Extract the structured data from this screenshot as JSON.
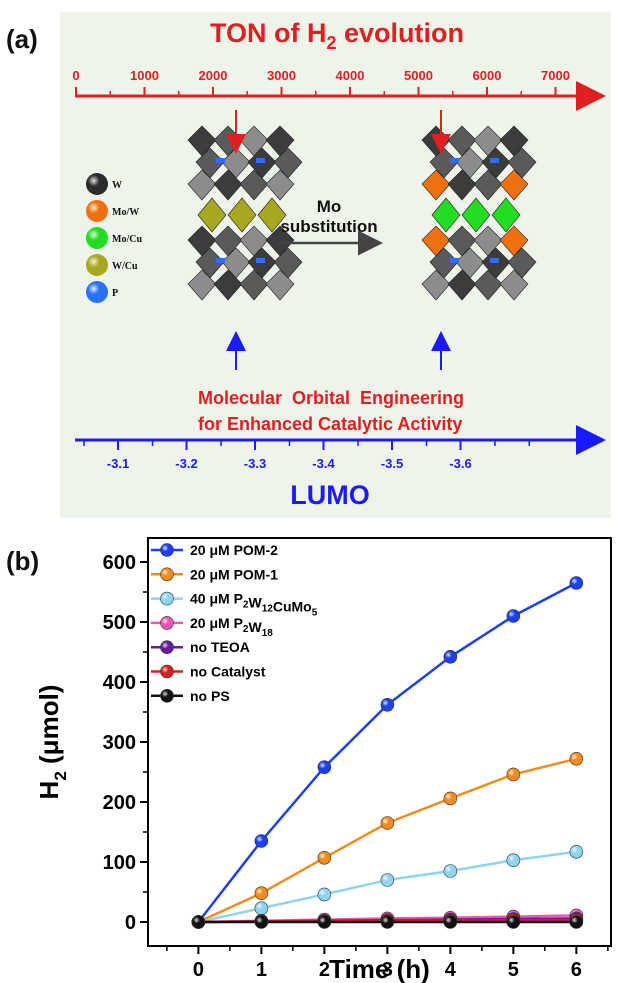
{
  "panel_a": {
    "label": "(a)",
    "top_axis": {
      "title_main": "TON of H",
      "title_sub": "2",
      "title_tail": " evolution",
      "ticks": [
        "0",
        "1000",
        "2000",
        "3000",
        "4000",
        "5000",
        "6000",
        "7000"
      ],
      "color": "#e02020"
    },
    "bottom_axis": {
      "title": "LUMO",
      "ticks": [
        "-3.1",
        "-3.2",
        "-3.3",
        "-3.4",
        "-3.5",
        "-3.6"
      ],
      "color": "#1a1aff"
    },
    "legend": [
      {
        "label": "W",
        "color": "#2b2b2b"
      },
      {
        "label": "Mo/W",
        "color": "#f07010"
      },
      {
        "label": "Mo/Cu",
        "color": "#22dd22"
      },
      {
        "label": "W/Cu",
        "color": "#a8a820"
      },
      {
        "label": "P",
        "color": "#2a6fff"
      }
    ],
    "substitution_line1": "Mo",
    "substitution_line2": "substitution",
    "caption_line1": "Molecular  Orbital  Engineering",
    "caption_line2": "for Enhanced Catalytic Activity",
    "background": "#eef4ea"
  },
  "panel_b": {
    "label": "(b)",
    "chart_data": {
      "type": "line",
      "xlabel": "Time (h)",
      "ylabel_main": "H",
      "ylabel_sub": "2",
      "ylabel_tail": " (μmol)",
      "xlim": [
        -0.8,
        6.55
      ],
      "ylim": [
        -40,
        640
      ],
      "x_ticks": [
        0,
        1,
        2,
        3,
        4,
        5,
        6
      ],
      "y_ticks": [
        0,
        100,
        200,
        300,
        400,
        500,
        600
      ],
      "legend_position": "top-left",
      "x": [
        0,
        1,
        2,
        3,
        4,
        5,
        6
      ],
      "series": [
        {
          "name": "20 μM POM-2",
          "name_parts": [
            [
              "20 μM POM-2",
              ""
            ]
          ],
          "color": "#1c3ff0",
          "values": [
            0,
            135,
            258,
            362,
            442,
            510,
            565
          ]
        },
        {
          "name": "20 μM POM-1",
          "name_parts": [
            [
              "20 μM POM-1",
              ""
            ]
          ],
          "color": "#f28c1e",
          "values": [
            0,
            48,
            107,
            165,
            206,
            246,
            272
          ]
        },
        {
          "name": "40 μM P2W12CuMo5",
          "name_parts": [
            [
              "40 μM P",
              ""
            ],
            [
              "2",
              "sub"
            ],
            [
              "W",
              ""
            ],
            [
              "12",
              "sub"
            ],
            [
              "CuMo",
              ""
            ],
            [
              "5",
              "sub"
            ]
          ],
          "color": "#8fd3f2",
          "values": [
            0,
            23,
            46,
            70,
            85,
            103,
            117
          ]
        },
        {
          "name": "20 μM P2W18",
          "name_parts": [
            [
              "20 μM P",
              ""
            ],
            [
              "2",
              "sub"
            ],
            [
              "W",
              ""
            ],
            [
              "18",
              "sub"
            ]
          ],
          "color": "#ee55b4",
          "values": [
            0,
            2,
            4,
            6,
            7,
            9,
            11
          ]
        },
        {
          "name": "no TEOA",
          "name_parts": [
            [
              "no TEOA",
              ""
            ]
          ],
          "color": "#6a1b9a",
          "values": [
            0,
            1,
            2,
            3,
            4,
            5,
            6
          ]
        },
        {
          "name": "no Catalyst",
          "name_parts": [
            [
              "no Catalyst",
              ""
            ]
          ],
          "color": "#d81e1e",
          "values": [
            0,
            1,
            1,
            2,
            2,
            3,
            3
          ]
        },
        {
          "name": "no PS",
          "name_parts": [
            [
              "no PS",
              ""
            ]
          ],
          "color": "#111111",
          "values": [
            0,
            0,
            0,
            0,
            0,
            0,
            0
          ]
        }
      ]
    }
  }
}
